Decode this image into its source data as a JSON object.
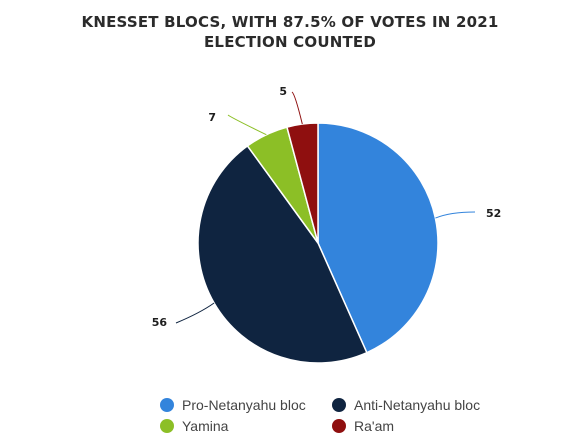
{
  "title": "KNESSET BLOCS, WITH 87.5% OF VOTES IN 2021 ELECTION COUNTED",
  "colors": {
    "pro_netanyahu": "#3384dc",
    "anti_netanyahu": "#0f2440",
    "yamina": "#8cbf26",
    "raam": "#8f0f0f"
  },
  "chart_data": {
    "type": "pie",
    "title": "KNESSET BLOCS, WITH 87.5% OF VOTES IN 2021 ELECTION COUNTED",
    "start_angle_deg": 0,
    "direction": "clockwise",
    "legend_position": "bottom",
    "slices": [
      {
        "label": "Pro-Netanyahu bloc",
        "value": 52,
        "color": "#3384dc"
      },
      {
        "label": "Anti-Netanyahu bloc",
        "value": 56,
        "color": "#0f2440"
      },
      {
        "label": "Yamina",
        "value": 7,
        "color": "#8cbf26"
      },
      {
        "label": "Ra'am",
        "value": 5,
        "color": "#8f0f0f"
      }
    ]
  }
}
